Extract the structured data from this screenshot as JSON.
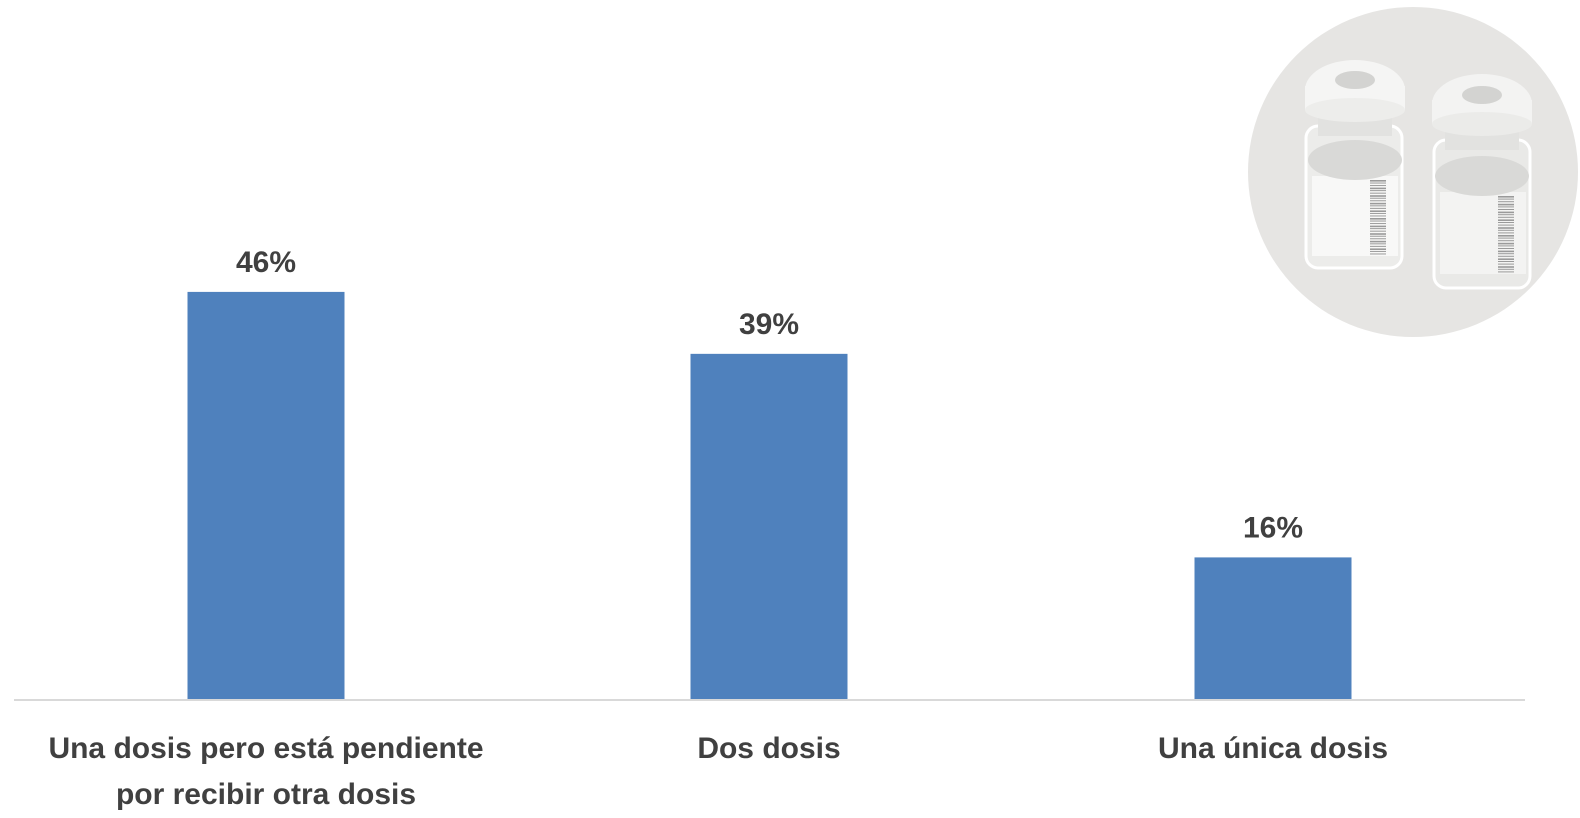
{
  "chart_data": {
    "type": "bar",
    "categories": [
      [
        "Una dosis pero está pendiente",
        "por recibir otra dosis"
      ],
      [
        "Dos dosis"
      ],
      [
        "Una única dosis"
      ]
    ],
    "values": [
      46,
      39,
      16
    ],
    "value_labels": [
      "46%",
      "39%",
      "16%"
    ],
    "unit": "%",
    "ylim": [
      0,
      100
    ],
    "grid": false,
    "legend": "none",
    "colors": {
      "bar": "#4F81BD",
      "axis": "#D9D9D9",
      "text": "#404040",
      "illustration_bg": "#E6E5E3"
    }
  },
  "illustration": {
    "icon": "vaccine-vials-icon"
  }
}
